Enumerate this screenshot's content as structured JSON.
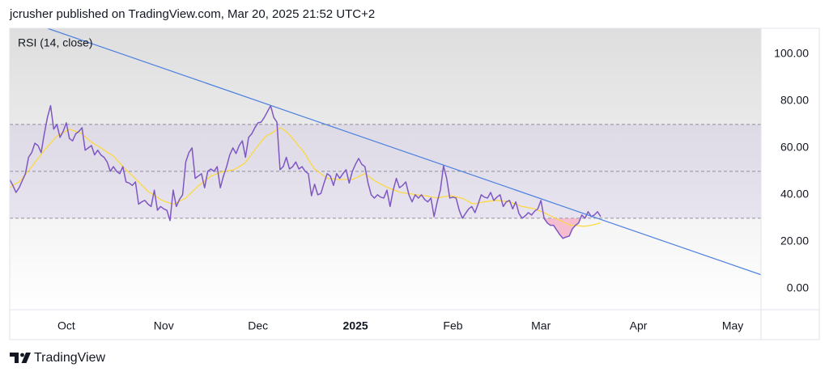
{
  "header": "jcrusher published on TradingView.com, Mar 20, 2025 21:52 UTC+2",
  "footer": {
    "brand": "TradingView"
  },
  "chart_data": {
    "type": "line",
    "title": "RSI (14, close)",
    "categories": [
      null,
      null,
      null,
      null,
      null,
      null,
      null,
      null,
      null,
      null,
      null,
      null,
      null,
      null,
      null,
      null,
      null,
      null,
      "Oct",
      null,
      null,
      null,
      null,
      null,
      null,
      null,
      null,
      null,
      null,
      null,
      null,
      null,
      null,
      null,
      null,
      null,
      null,
      null,
      null,
      null,
      null,
      null,
      null,
      null,
      null,
      null,
      null,
      null,
      null,
      "Nov",
      null,
      null,
      null,
      null,
      null,
      null,
      null,
      null,
      null,
      null,
      null,
      null,
      null,
      null,
      null,
      null,
      null,
      null,
      null,
      null,
      null,
      null,
      null,
      null,
      null,
      null,
      null,
      null,
      null,
      "Dec",
      null,
      null,
      null,
      null,
      null,
      null,
      null,
      null,
      null,
      null,
      null,
      null,
      null,
      null,
      null,
      null,
      null,
      null,
      null,
      null,
      null,
      null,
      null,
      null,
      null,
      null,
      null,
      null,
      null,
      null,
      "2025",
      null,
      null,
      null,
      null,
      null,
      null,
      null,
      null,
      null,
      null,
      null,
      null,
      null,
      null,
      null,
      null,
      null,
      null,
      null,
      null,
      null,
      null,
      null,
      null,
      null,
      null,
      null,
      null,
      null,
      null,
      "Feb",
      null,
      null,
      null,
      null,
      null,
      null,
      null,
      null,
      null,
      null,
      null,
      null,
      null,
      null,
      null,
      null,
      null,
      null,
      null,
      null,
      null,
      null,
      null,
      null,
      null,
      null,
      null,
      "Mar",
      null,
      null,
      null,
      null,
      null,
      null,
      null,
      null,
      null,
      null,
      null,
      null,
      null,
      null,
      null,
      null,
      null,
      null,
      null,
      null,
      null,
      null,
      null,
      null,
      null,
      null,
      null,
      null,
      null,
      null,
      "Apr",
      null,
      null,
      null,
      null,
      null,
      null,
      null,
      null,
      null,
      null,
      null,
      null,
      null,
      null,
      null,
      null,
      null,
      null,
      null,
      null,
      null,
      null,
      null,
      null,
      null,
      null,
      null,
      null,
      null,
      "May",
      null,
      null,
      null,
      null,
      null,
      null,
      null,
      null,
      null
    ],
    "series": [
      {
        "color": "#7e57c2",
        "width": 1.5,
        "values": [
          46.5,
          44,
          41,
          43,
          46,
          49,
          56,
          58,
          62,
          61,
          58,
          66,
          73,
          78,
          68,
          70,
          64.5,
          67,
          70.7,
          64,
          63,
          66,
          67,
          68.6,
          59,
          60,
          61,
          57,
          59,
          57,
          56,
          54,
          50,
          52,
          50,
          49,
          52,
          45.5,
          45,
          44,
          45.5,
          36,
          37,
          37.6,
          36,
          35,
          42,
          33.4,
          35,
          34,
          33.4,
          29,
          42,
          35,
          38,
          40,
          54,
          58,
          60,
          47,
          48,
          49,
          43,
          50,
          51,
          50,
          52,
          43,
          48,
          52,
          57,
          60,
          57.6,
          61,
          63,
          56,
          64.5,
          66,
          68.6,
          70.7,
          71,
          73,
          75.5,
          78,
          73,
          71,
          50.7,
          52,
          56,
          51,
          52,
          54,
          51,
          52,
          50,
          49,
          39.6,
          44.5,
          40,
          40.6,
          45,
          49,
          48,
          44,
          49,
          47,
          49,
          50.7,
          45,
          50,
          53,
          55.5,
          53,
          52,
          45,
          40,
          38.6,
          40,
          39,
          38.6,
          42,
          35,
          42,
          47,
          43,
          44,
          45.5,
          40,
          37,
          40,
          38.6,
          40,
          38,
          37,
          38.6,
          30.7,
          37,
          42,
          52.4,
          47,
          38.6,
          39,
          38.6,
          33.4,
          30,
          32,
          34,
          35,
          32.4,
          36,
          40,
          39,
          38.6,
          41,
          37.6,
          39,
          40,
          35,
          37,
          37.6,
          34,
          37,
          32,
          30,
          31,
          32.4,
          31.4,
          33,
          34,
          37.6,
          30,
          28,
          27,
          27,
          25,
          23,
          21.4,
          22,
          22.4,
          25.5,
          27,
          28,
          31.4,
          30,
          32.8,
          30.7,
          31.4,
          32.8,
          30.7,
          null,
          null,
          null,
          null,
          null,
          null,
          null,
          null,
          null,
          null,
          null,
          null,
          null,
          null,
          null,
          null,
          null,
          null,
          null,
          null,
          null,
          null,
          null,
          null,
          null,
          null,
          null,
          null,
          null,
          null,
          null,
          null,
          null,
          null,
          null,
          null,
          null,
          null,
          null,
          null,
          null,
          null,
          null,
          null,
          null,
          null,
          null,
          null,
          null,
          null,
          null
        ]
      },
      {
        "color": "#fdd835",
        "width": 1.2,
        "values": [
          43,
          44,
          44.8,
          45.5,
          47,
          48.7,
          50.3,
          52,
          53.8,
          55.5,
          57.2,
          59,
          60.5,
          62,
          63.5,
          65,
          65.8,
          66.5,
          67.2,
          68,
          67.5,
          67,
          66.5,
          66,
          64.8,
          63.6,
          62.4,
          61.6,
          60.8,
          60,
          59.1,
          58.2,
          57.4,
          56.5,
          55,
          53.6,
          52.1,
          50.7,
          49.4,
          48.1,
          46.8,
          45.5,
          44.1,
          42.8,
          41.4,
          40.6,
          39.8,
          38.9,
          38,
          37.3,
          36.9,
          36.4,
          36,
          36.6,
          37.3,
          37.9,
          38.6,
          39.9,
          41.2,
          42.5,
          43.8,
          44.8,
          45.9,
          46.9,
          48,
          48.5,
          49,
          49.5,
          50,
          50.2,
          50.4,
          50.6,
          51.2,
          52,
          52.9,
          53.8,
          55.6,
          57.4,
          59.2,
          61,
          62.7,
          64.3,
          65.5,
          66,
          66.9,
          67.7,
          68.6,
          67.8,
          66.9,
          65.5,
          64,
          62.4,
          60.7,
          59.2,
          57.3,
          55.1,
          52.9,
          50.9,
          50,
          49,
          48,
          47,
          46.9,
          46.8,
          46.6,
          46.5,
          46.5,
          46.5,
          46.5,
          46.5,
          47.1,
          47.8,
          48.4,
          49,
          48,
          47.1,
          46,
          45.3,
          44.6,
          43.9,
          43.2,
          42.7,
          42.2,
          41.7,
          41.1,
          40.9,
          40.7,
          40.5,
          40.3,
          40.1,
          39.9,
          39.8,
          39.6,
          39.4,
          39.1,
          38.9,
          38.6,
          38.9,
          39.1,
          39.4,
          39.6,
          39.4,
          39.1,
          38.8,
          38.5,
          37.8,
          37.1,
          36.3,
          36.2,
          36.5,
          36.8,
          37,
          37.2,
          37.3,
          37.5,
          37.6,
          37.5,
          37.3,
          37.2,
          37,
          36.5,
          36,
          35.5,
          35,
          34.8,
          34.5,
          34.3,
          34,
          33.4,
          32.9,
          32.3,
          31.7,
          31,
          30.4,
          29.7,
          29.1,
          28.5,
          27.9,
          27.2,
          27,
          26.9,
          26.8,
          26.6,
          26.6,
          26.8,
          27,
          27.3,
          27.7,
          28,
          null,
          null,
          null,
          null,
          null,
          null,
          null,
          null,
          null,
          null,
          null,
          null,
          null,
          null,
          null,
          null,
          null,
          null,
          null,
          null,
          null,
          null,
          null,
          null,
          null,
          null,
          null,
          null,
          null,
          null,
          null,
          null,
          null,
          null,
          null,
          null,
          null,
          null,
          null,
          null,
          null,
          null,
          null,
          null,
          null,
          null,
          null,
          null,
          null,
          null,
          null
        ]
      }
    ],
    "ylim": [
      -9,
      111
    ],
    "yticks": [
      {
        "value": 100,
        "label": "100.00"
      },
      {
        "value": 80,
        "label": "80.00"
      },
      {
        "value": 60,
        "label": "60.00"
      },
      {
        "value": 40,
        "label": "40.00"
      },
      {
        "value": 20,
        "label": "20.00"
      },
      {
        "value": 0,
        "label": "0.00"
      }
    ],
    "grid": false,
    "band": [
      30,
      70
    ],
    "band_color": "#7e57c2",
    "levels": [
      70,
      50,
      30
    ],
    "oversold_fill_color": "#f48fb1",
    "trendline": {
      "x": [
        12,
        239
      ],
      "values": [
        111,
        5.9
      ],
      "color": "#4a7fe0"
    }
  }
}
